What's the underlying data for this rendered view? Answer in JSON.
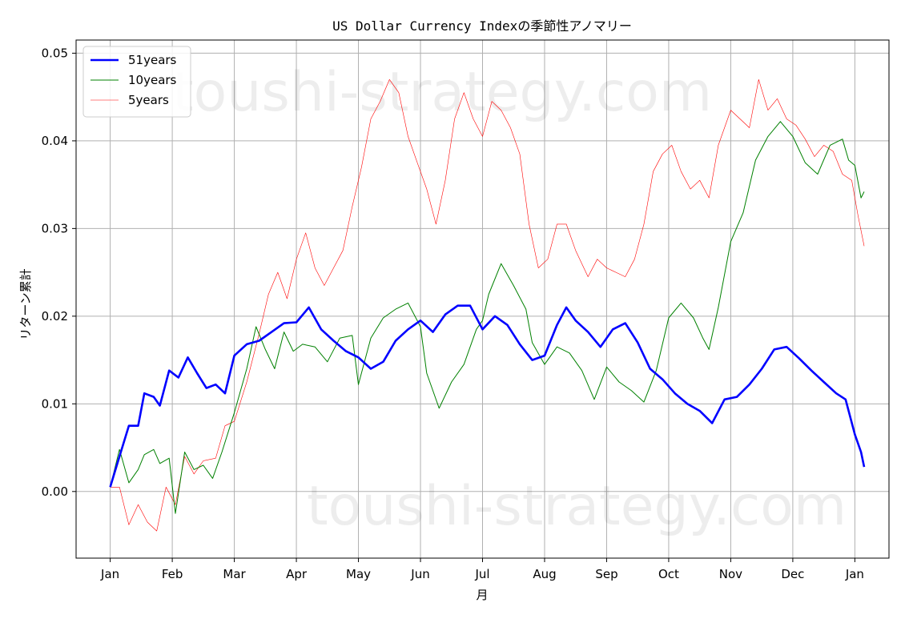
{
  "chart_data": {
    "type": "line",
    "title": "US Dollar Currency Indexの季節性アノマリー",
    "xlabel": "月",
    "ylabel": "リターン累計",
    "x_ticks": [
      "Jan",
      "Feb",
      "Mar",
      "Apr",
      "May",
      "Jun",
      "Jul",
      "Aug",
      "Sep",
      "Oct",
      "Nov",
      "Dec",
      "Jan"
    ],
    "y_ticks": [
      "0.00",
      "0.01",
      "0.02",
      "0.03",
      "0.04",
      "0.05"
    ],
    "xlim": [
      -0.55,
      12.55
    ],
    "ylim": [
      -0.0076,
      0.0515
    ],
    "grid": true,
    "legend_position": "top-left",
    "watermark": "toushi-strategy.com",
    "series": [
      {
        "name": "51years",
        "color": "#0000ff",
        "points": [
          [
            0,
            0.0005
          ],
          [
            0.15,
            0.004
          ],
          [
            0.3,
            0.0075
          ],
          [
            0.45,
            0.0075
          ],
          [
            0.55,
            0.0112
          ],
          [
            0.7,
            0.0108
          ],
          [
            0.8,
            0.0098
          ],
          [
            0.95,
            0.0138
          ],
          [
            1.1,
            0.013
          ],
          [
            1.25,
            0.0153
          ],
          [
            1.4,
            0.0135
          ],
          [
            1.55,
            0.0118
          ],
          [
            1.7,
            0.0122
          ],
          [
            1.85,
            0.0112
          ],
          [
            2.0,
            0.0155
          ],
          [
            2.2,
            0.0168
          ],
          [
            2.4,
            0.0172
          ],
          [
            2.6,
            0.0182
          ],
          [
            2.8,
            0.0192
          ],
          [
            3.0,
            0.0193
          ],
          [
            3.2,
            0.021
          ],
          [
            3.4,
            0.0185
          ],
          [
            3.6,
            0.0172
          ],
          [
            3.8,
            0.016
          ],
          [
            4.0,
            0.0153
          ],
          [
            4.2,
            0.014
          ],
          [
            4.4,
            0.0148
          ],
          [
            4.6,
            0.0172
          ],
          [
            4.8,
            0.0185
          ],
          [
            5.0,
            0.0195
          ],
          [
            5.2,
            0.0182
          ],
          [
            5.4,
            0.0202
          ],
          [
            5.6,
            0.0212
          ],
          [
            5.8,
            0.0212
          ],
          [
            6.0,
            0.0185
          ],
          [
            6.2,
            0.02
          ],
          [
            6.4,
            0.019
          ],
          [
            6.6,
            0.0168
          ],
          [
            6.8,
            0.015
          ],
          [
            7.0,
            0.0155
          ],
          [
            7.2,
            0.019
          ],
          [
            7.35,
            0.021
          ],
          [
            7.5,
            0.0195
          ],
          [
            7.7,
            0.0182
          ],
          [
            7.9,
            0.0165
          ],
          [
            8.1,
            0.0185
          ],
          [
            8.3,
            0.0192
          ],
          [
            8.5,
            0.017
          ],
          [
            8.7,
            0.014
          ],
          [
            8.9,
            0.0128
          ],
          [
            9.1,
            0.0112
          ],
          [
            9.3,
            0.01
          ],
          [
            9.5,
            0.0092
          ],
          [
            9.7,
            0.0078
          ],
          [
            9.9,
            0.0105
          ],
          [
            10.1,
            0.0108
          ],
          [
            10.3,
            0.0122
          ],
          [
            10.5,
            0.014
          ],
          [
            10.7,
            0.0162
          ],
          [
            10.9,
            0.0165
          ],
          [
            11.1,
            0.0152
          ],
          [
            11.3,
            0.0138
          ],
          [
            11.5,
            0.0125
          ],
          [
            11.7,
            0.0112
          ],
          [
            11.85,
            0.0105
          ],
          [
            12.0,
            0.0065
          ],
          [
            12.1,
            0.0045
          ],
          [
            12.15,
            0.0028
          ]
        ]
      },
      {
        "name": "10years",
        "color": "#008000",
        "points": [
          [
            0,
            0.0005
          ],
          [
            0.15,
            0.0048
          ],
          [
            0.3,
            0.001
          ],
          [
            0.45,
            0.0025
          ],
          [
            0.55,
            0.0042
          ],
          [
            0.7,
            0.0048
          ],
          [
            0.8,
            0.0032
          ],
          [
            0.95,
            0.0038
          ],
          [
            1.05,
            -0.0025
          ],
          [
            1.2,
            0.0045
          ],
          [
            1.35,
            0.0025
          ],
          [
            1.5,
            0.003
          ],
          [
            1.65,
            0.0015
          ],
          [
            1.8,
            0.0045
          ],
          [
            2.0,
            0.009
          ],
          [
            2.2,
            0.014
          ],
          [
            2.35,
            0.0188
          ],
          [
            2.5,
            0.0162
          ],
          [
            2.65,
            0.014
          ],
          [
            2.8,
            0.0182
          ],
          [
            2.95,
            0.016
          ],
          [
            3.1,
            0.0168
          ],
          [
            3.3,
            0.0165
          ],
          [
            3.5,
            0.0148
          ],
          [
            3.7,
            0.0175
          ],
          [
            3.9,
            0.0178
          ],
          [
            4.0,
            0.0122
          ],
          [
            4.2,
            0.0175
          ],
          [
            4.4,
            0.0198
          ],
          [
            4.6,
            0.0208
          ],
          [
            4.8,
            0.0215
          ],
          [
            5.0,
            0.0188
          ],
          [
            5.1,
            0.0135
          ],
          [
            5.3,
            0.0095
          ],
          [
            5.5,
            0.0125
          ],
          [
            5.7,
            0.0145
          ],
          [
            5.9,
            0.0185
          ],
          [
            6.0,
            0.0195
          ],
          [
            6.1,
            0.0225
          ],
          [
            6.3,
            0.026
          ],
          [
            6.5,
            0.0235
          ],
          [
            6.7,
            0.0208
          ],
          [
            6.8,
            0.017
          ],
          [
            7.0,
            0.0145
          ],
          [
            7.2,
            0.0165
          ],
          [
            7.4,
            0.0158
          ],
          [
            7.6,
            0.0138
          ],
          [
            7.8,
            0.0105
          ],
          [
            8.0,
            0.0142
          ],
          [
            8.2,
            0.0125
          ],
          [
            8.4,
            0.0115
          ],
          [
            8.6,
            0.0102
          ],
          [
            8.8,
            0.0138
          ],
          [
            9.0,
            0.0198
          ],
          [
            9.2,
            0.0215
          ],
          [
            9.4,
            0.0198
          ],
          [
            9.55,
            0.0175
          ],
          [
            9.65,
            0.0162
          ],
          [
            9.8,
            0.021
          ],
          [
            10.0,
            0.0285
          ],
          [
            10.2,
            0.0318
          ],
          [
            10.4,
            0.0378
          ],
          [
            10.6,
            0.0405
          ],
          [
            10.8,
            0.0422
          ],
          [
            11.0,
            0.0405
          ],
          [
            11.2,
            0.0375
          ],
          [
            11.4,
            0.0362
          ],
          [
            11.6,
            0.0395
          ],
          [
            11.8,
            0.0402
          ],
          [
            11.9,
            0.0378
          ],
          [
            12.0,
            0.0372
          ],
          [
            12.1,
            0.0335
          ],
          [
            12.15,
            0.0342
          ]
        ]
      },
      {
        "name": "5years",
        "color": "#ff0000",
        "points": [
          [
            0,
            0.0005
          ],
          [
            0.15,
            0.0005
          ],
          [
            0.3,
            -0.0038
          ],
          [
            0.45,
            -0.0015
          ],
          [
            0.6,
            -0.0035
          ],
          [
            0.75,
            -0.0045
          ],
          [
            0.9,
            0.0005
          ],
          [
            1.05,
            -0.0015
          ],
          [
            1.2,
            0.004
          ],
          [
            1.35,
            0.002
          ],
          [
            1.5,
            0.0035
          ],
          [
            1.7,
            0.0038
          ],
          [
            1.85,
            0.0075
          ],
          [
            2.0,
            0.008
          ],
          [
            2.2,
            0.0125
          ],
          [
            2.4,
            0.018
          ],
          [
            2.55,
            0.0225
          ],
          [
            2.7,
            0.025
          ],
          [
            2.85,
            0.022
          ],
          [
            3.0,
            0.0265
          ],
          [
            3.15,
            0.0295
          ],
          [
            3.3,
            0.0255
          ],
          [
            3.45,
            0.0235
          ],
          [
            3.6,
            0.0255
          ],
          [
            3.75,
            0.0275
          ],
          [
            3.9,
            0.0325
          ],
          [
            4.05,
            0.037
          ],
          [
            4.2,
            0.0425
          ],
          [
            4.35,
            0.0445
          ],
          [
            4.5,
            0.047
          ],
          [
            4.65,
            0.0455
          ],
          [
            4.8,
            0.0405
          ],
          [
            4.95,
            0.0375
          ],
          [
            5.1,
            0.0345
          ],
          [
            5.25,
            0.0305
          ],
          [
            5.4,
            0.0355
          ],
          [
            5.55,
            0.0425
          ],
          [
            5.7,
            0.0455
          ],
          [
            5.85,
            0.0425
          ],
          [
            6.0,
            0.0405
          ],
          [
            6.15,
            0.0445
          ],
          [
            6.3,
            0.0435
          ],
          [
            6.45,
            0.0415
          ],
          [
            6.6,
            0.0385
          ],
          [
            6.75,
            0.0305
          ],
          [
            6.9,
            0.0255
          ],
          [
            7.05,
            0.0265
          ],
          [
            7.2,
            0.0305
          ],
          [
            7.35,
            0.0305
          ],
          [
            7.5,
            0.0275
          ],
          [
            7.7,
            0.0245
          ],
          [
            7.85,
            0.0265
          ],
          [
            8.0,
            0.0255
          ],
          [
            8.15,
            0.025
          ],
          [
            8.3,
            0.0245
          ],
          [
            8.45,
            0.0265
          ],
          [
            8.6,
            0.0305
          ],
          [
            8.75,
            0.0365
          ],
          [
            8.9,
            0.0385
          ],
          [
            9.05,
            0.0395
          ],
          [
            9.2,
            0.0365
          ],
          [
            9.35,
            0.0345
          ],
          [
            9.5,
            0.0355
          ],
          [
            9.65,
            0.0335
          ],
          [
            9.8,
            0.0395
          ],
          [
            10.0,
            0.0435
          ],
          [
            10.15,
            0.0425
          ],
          [
            10.3,
            0.0415
          ],
          [
            10.45,
            0.047
          ],
          [
            10.6,
            0.0435
          ],
          [
            10.75,
            0.0448
          ],
          [
            10.9,
            0.0425
          ],
          [
            11.05,
            0.0418
          ],
          [
            11.2,
            0.0402
          ],
          [
            11.35,
            0.0382
          ],
          [
            11.5,
            0.0395
          ],
          [
            11.65,
            0.0388
          ],
          [
            11.8,
            0.0362
          ],
          [
            11.95,
            0.0355
          ],
          [
            12.05,
            0.0315
          ],
          [
            12.15,
            0.028
          ]
        ]
      }
    ]
  }
}
